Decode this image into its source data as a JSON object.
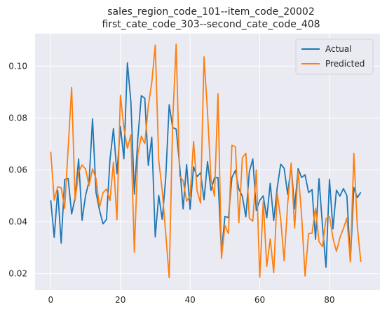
{
  "chart_data": {
    "type": "line",
    "title": [
      "sales_region_code_101--item_code_20002",
      "first_cate_code_303--second_cate_code_408"
    ],
    "xlabel": "",
    "ylabel": "",
    "xlim": [
      -4.5,
      94.5
    ],
    "ylim": [
      0.0137,
      0.1125
    ],
    "xticks": [
      0,
      20,
      40,
      60,
      80
    ],
    "yticks": [
      0.02,
      0.04,
      0.06,
      0.08,
      0.1
    ],
    "ytick_labels": [
      "0.02",
      "0.04",
      "0.06",
      "0.08",
      "0.10"
    ],
    "grid": true,
    "background": "#eaeaf2",
    "legend_position": "top-right",
    "series": [
      {
        "name": "Actual",
        "color": "#1f77b4",
        "values": [
          0.0483,
          0.034,
          0.0521,
          0.0318,
          0.0563,
          0.0567,
          0.043,
          0.0492,
          0.0642,
          0.0406,
          0.0502,
          0.0555,
          0.0797,
          0.0513,
          0.0445,
          0.0392,
          0.0409,
          0.0639,
          0.0759,
          0.0585,
          0.0767,
          0.0643,
          0.1013,
          0.0864,
          0.0507,
          0.0721,
          0.0886,
          0.0876,
          0.0617,
          0.0726,
          0.0342,
          0.0502,
          0.0409,
          0.0568,
          0.0851,
          0.0763,
          0.0757,
          0.0618,
          0.045,
          0.0621,
          0.0448,
          0.0612,
          0.0574,
          0.0589,
          0.0485,
          0.0632,
          0.0521,
          0.057,
          0.057,
          0.0282,
          0.0421,
          0.0416,
          0.057,
          0.0598,
          0.0526,
          0.0498,
          0.0419,
          0.0593,
          0.0642,
          0.0444,
          0.0483,
          0.05,
          0.0415,
          0.0549,
          0.0405,
          0.0531,
          0.0622,
          0.0606,
          0.0506,
          0.0617,
          0.0451,
          0.0605,
          0.0571,
          0.0581,
          0.0513,
          0.0524,
          0.0333,
          0.0566,
          0.0383,
          0.0225,
          0.0563,
          0.0373,
          0.0522,
          0.0499,
          0.0528,
          0.0501,
          0.0249,
          0.0532,
          0.0493,
          0.0514
        ]
      },
      {
        "name": "Predicted",
        "color": "#ff7f0e",
        "values": [
          0.067,
          0.0483,
          0.0535,
          0.0531,
          0.0452,
          0.0684,
          0.0918,
          0.0482,
          0.0591,
          0.0619,
          0.0603,
          0.0539,
          0.0604,
          0.0566,
          0.0456,
          0.0512,
          0.0526,
          0.0482,
          0.063,
          0.0408,
          0.0888,
          0.0762,
          0.0683,
          0.0735,
          0.0283,
          0.0662,
          0.073,
          0.0701,
          0.0846,
          0.0936,
          0.1081,
          0.0637,
          0.052,
          0.0356,
          0.0185,
          0.0786,
          0.1084,
          0.0576,
          0.0558,
          0.048,
          0.05,
          0.071,
          0.052,
          0.0472,
          0.1036,
          0.0822,
          0.0563,
          0.0499,
          0.0893,
          0.0259,
          0.0386,
          0.0355,
          0.0695,
          0.0689,
          0.0397,
          0.0647,
          0.0664,
          0.0414,
          0.0402,
          0.06,
          0.0186,
          0.0479,
          0.0228,
          0.0334,
          0.0204,
          0.0511,
          0.0411,
          0.025,
          0.0468,
          0.0626,
          0.0376,
          0.0596,
          0.0425,
          0.0191,
          0.0355,
          0.0356,
          0.0452,
          0.0323,
          0.0305,
          0.0412,
          0.0421,
          0.0338,
          0.0286,
          0.0339,
          0.0374,
          0.0415,
          0.0245,
          0.0664,
          0.0381,
          0.0245
        ]
      }
    ]
  }
}
